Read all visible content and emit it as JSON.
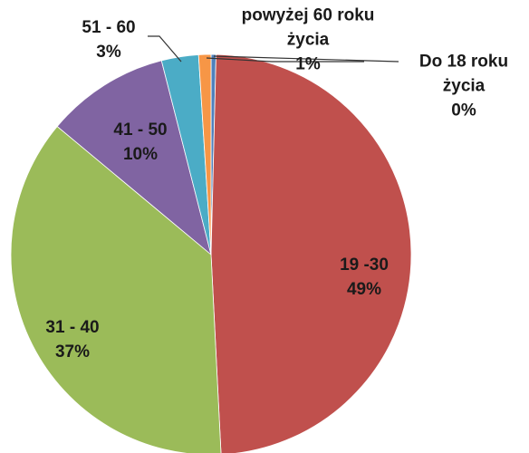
{
  "chart_data": {
    "type": "pie",
    "categories": [
      "Do 18 roku życia",
      "19 -30",
      "31 - 40",
      "41 - 50",
      "51 - 60",
      "powyżej 60 roku życia"
    ],
    "values": [
      0.4,
      49,
      37,
      10,
      3,
      1
    ],
    "value_labels": [
      "0%",
      "49%",
      "37%",
      "10%",
      "3%",
      "1%"
    ],
    "colors": [
      "#4f81bd",
      "#c0504d",
      "#9bbb59",
      "#8064a2",
      "#4bacc6",
      "#f79646"
    ]
  }
}
